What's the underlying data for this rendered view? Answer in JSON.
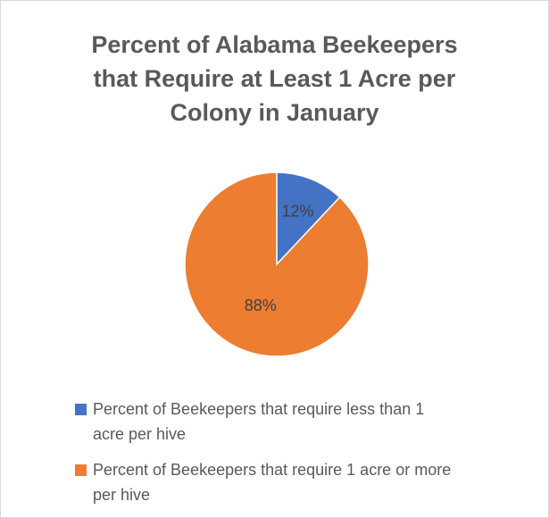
{
  "chart_data": {
    "type": "pie",
    "title_lines": [
      "Percent of Alabama Beekeepers",
      "that Require at Least 1 Acre per",
      "Colony in January"
    ],
    "slices": [
      {
        "name": "Percent of Beekeepers that require less than 1 acre per hive",
        "legend_lines": [
          "Percent of Beekeepers that require less than 1",
          "acre per hive"
        ],
        "value": 12,
        "label": "12%",
        "color": "#4472c4"
      },
      {
        "name": "Percent of Beekeepers that require 1 acre or more per hive",
        "legend_lines": [
          "Percent of Beekeepers that require 1 acre or more",
          "per hive"
        ],
        "value": 88,
        "label": "88%",
        "color": "#ed7d31"
      }
    ],
    "legend_position": "bottom"
  }
}
